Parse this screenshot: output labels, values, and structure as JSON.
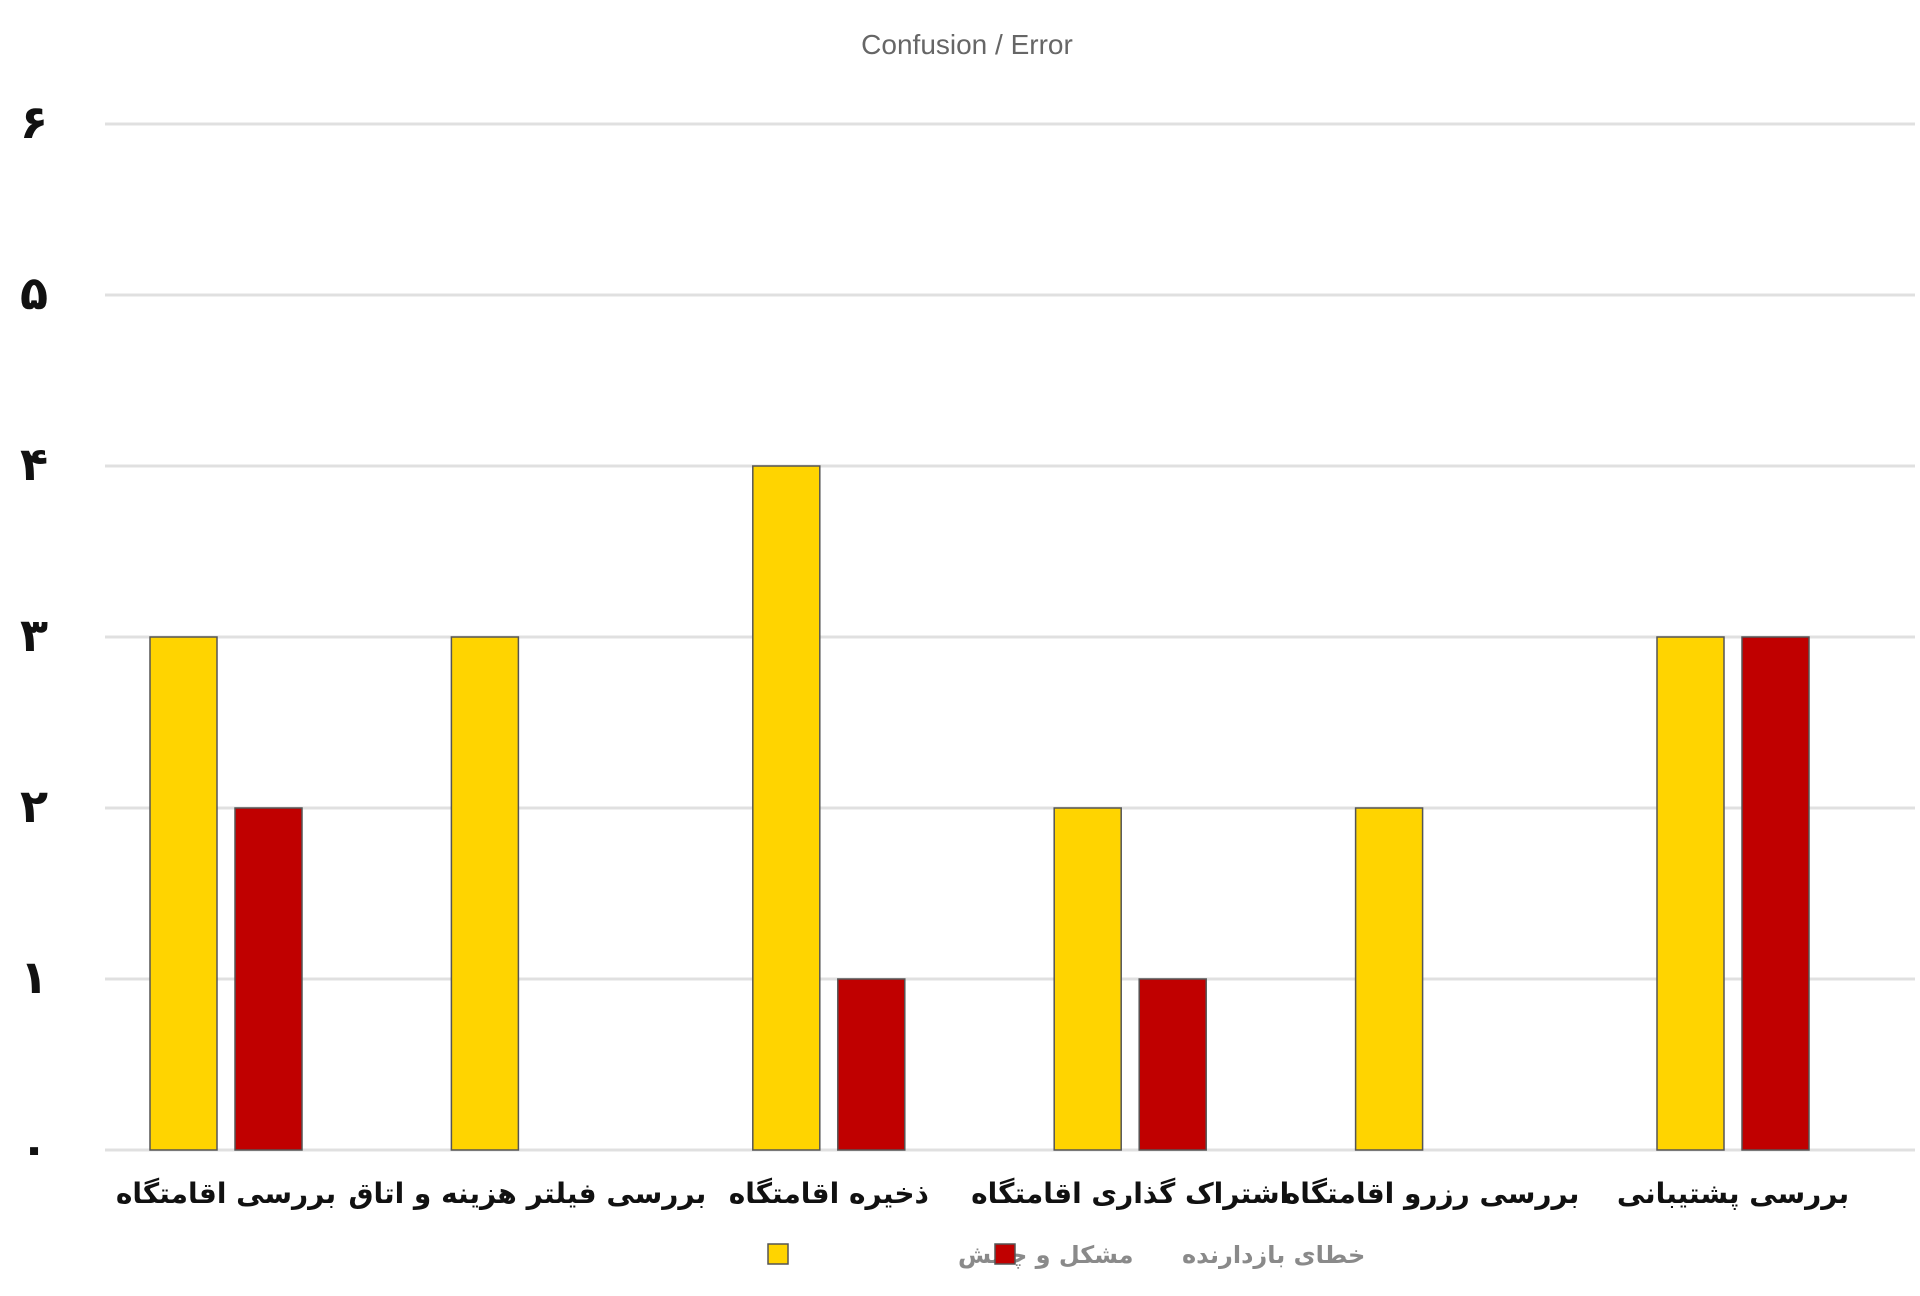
{
  "chart_data": {
    "type": "bar",
    "title": "Confusion / Error",
    "categories": [
      "بررسی اقامتگاه",
      "بررسی فیلتر هزینه و اتاق",
      "ذخیره اقامتگاه",
      "اشتراک گذاری اقامتگاه",
      "بررسی رزرو اقامتگاه",
      "بررسی پشتیبانی"
    ],
    "series": [
      {
        "name": "مشکل و چالش",
        "color": "#FFD400",
        "values": [
          3,
          3,
          4,
          2,
          2,
          3
        ]
      },
      {
        "name": "خطای بازدارنده",
        "color": "#C00000",
        "values": [
          2,
          0,
          1,
          1,
          0,
          3
        ]
      }
    ],
    "yticks": [
      0,
      1,
      2,
      3,
      4,
      5,
      6
    ],
    "ytick_labels": [
      "۰",
      "۱",
      "۲",
      "۳",
      "۴",
      "۵",
      "۶"
    ],
    "ylim": [
      0,
      6
    ],
    "xlabel": "",
    "ylabel": "",
    "grid": true,
    "legend_position": "bottom-center"
  }
}
